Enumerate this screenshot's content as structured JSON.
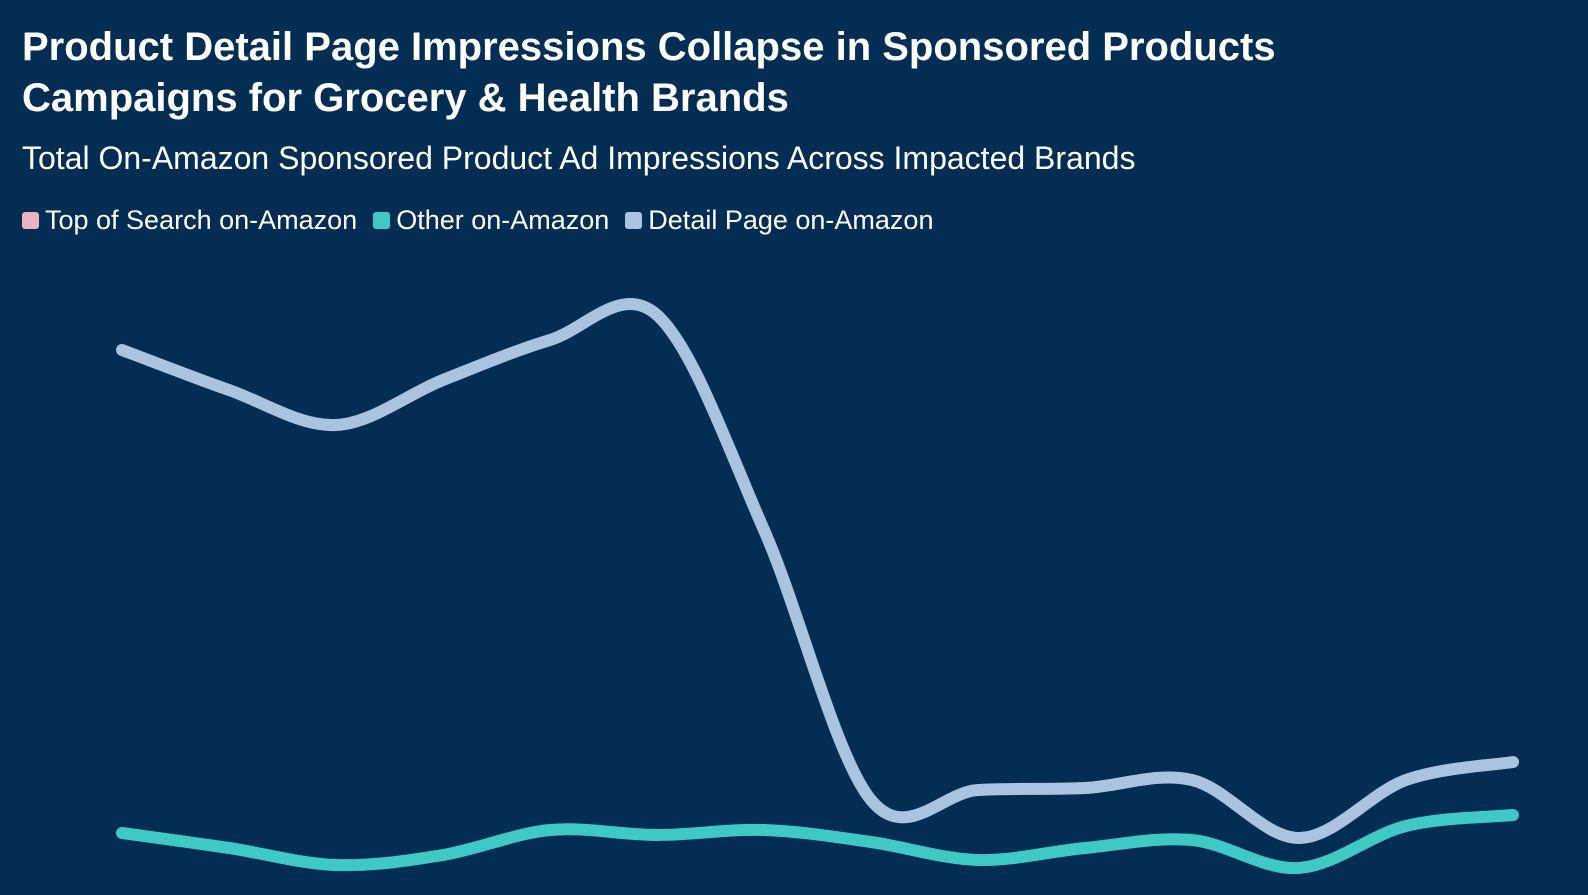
{
  "chart_data": {
    "type": "line",
    "title": "Product Detail Page Impressions Collapse in Sponsored Products Campaigns for Grocery & Health Brands",
    "subtitle": "Total On-Amazon Sponsored Product Ad Impressions Across Impacted Brands",
    "categories": [
      null,
      null,
      null,
      null,
      null,
      null,
      null,
      null,
      null,
      null,
      null,
      null,
      null,
      null
    ],
    "ylim": [
      0,
      120
    ],
    "series": [
      {
        "name": "Top of Search on-Amazon",
        "color": "#e8b4bd",
        "values": [
          null,
          null,
          null,
          null,
          null,
          null,
          null,
          null,
          null,
          null,
          null,
          null,
          null,
          null
        ]
      },
      {
        "name": "Other on-Amazon",
        "color": "#3ec8c6",
        "values": [
          9.4,
          6.4,
          3,
          5,
          10,
          9,
          10,
          7.6,
          4,
          6.4,
          8,
          2.4,
          10.8,
          13
        ]
      },
      {
        "name": "Detail Page on-Amazon",
        "color": "#a9c3e0",
        "values": [
          106,
          98,
          91,
          100,
          108,
          113,
          70,
          16,
          18,
          18.4,
          20,
          8.4,
          20,
          23.6
        ]
      }
    ]
  }
}
